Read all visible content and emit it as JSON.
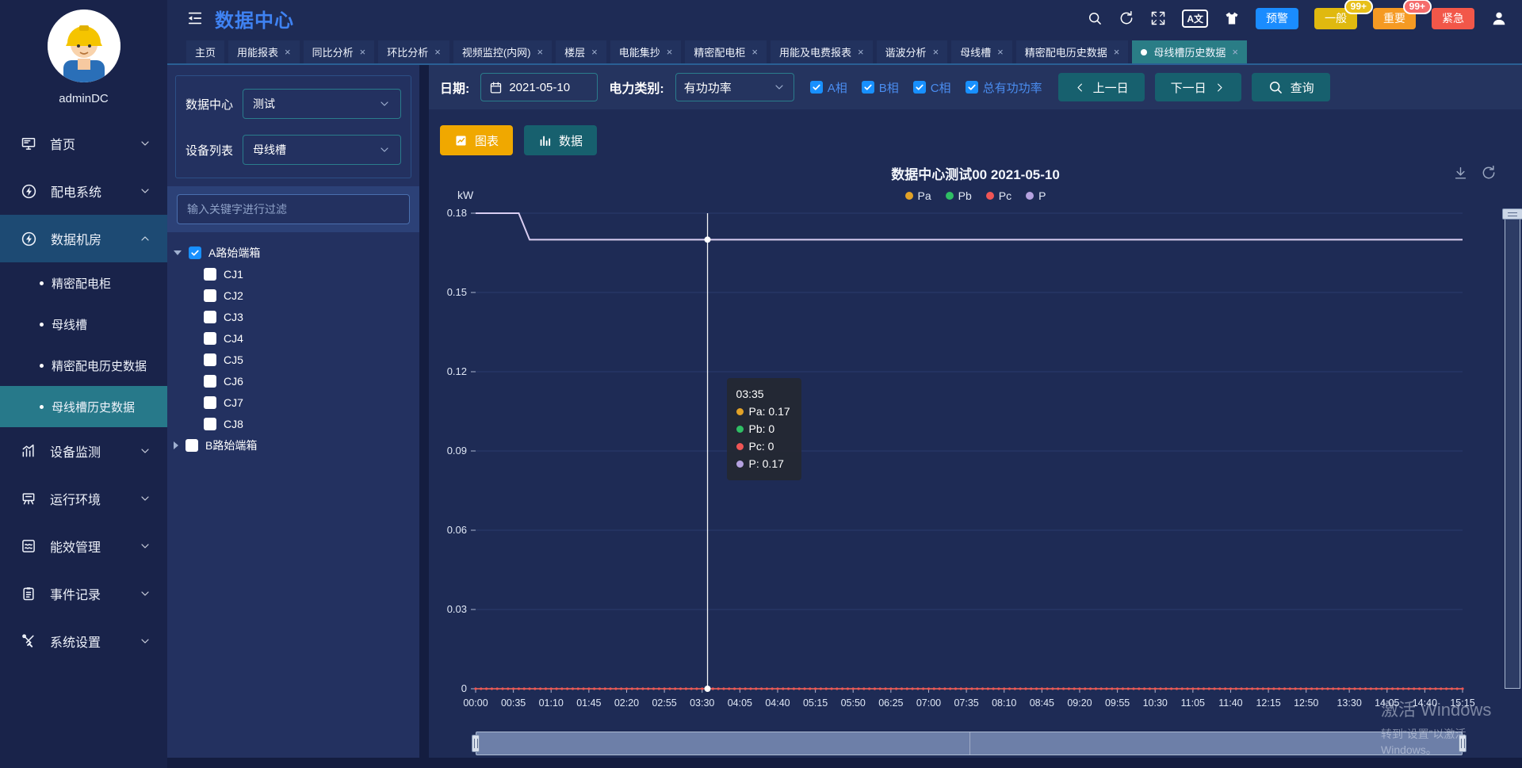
{
  "header": {
    "title": "数据中心",
    "action_icons": [
      "search",
      "refresh",
      "fullscreen",
      "translate",
      "theme"
    ],
    "translate_label": "A文",
    "badges": [
      {
        "id": "warning",
        "label": "预警",
        "color": "#1a8cff"
      },
      {
        "id": "general",
        "label": "一般",
        "color": "#e0b90f",
        "count": "99+",
        "count_color": "#e8c019"
      },
      {
        "id": "important",
        "label": "重要",
        "color": "#f59a23",
        "count": "99+",
        "count_color": "#f56c6c"
      },
      {
        "id": "urgent",
        "label": "紧急",
        "color": "#f25749"
      }
    ]
  },
  "tabs": [
    {
      "id": "home",
      "label": "主页",
      "closable": false,
      "active": false
    },
    {
      "id": "energy-report",
      "label": "用能报表",
      "closable": true,
      "active": false
    },
    {
      "id": "yoy-analysis",
      "label": "同比分析",
      "closable": true,
      "active": false
    },
    {
      "id": "mom-analysis",
      "label": "环比分析",
      "closable": true,
      "active": false
    },
    {
      "id": "video-monitor",
      "label": "视频监控(内网)",
      "closable": true,
      "active": false
    },
    {
      "id": "floor",
      "label": "楼层",
      "closable": true,
      "active": false
    },
    {
      "id": "meter-reading",
      "label": "电能集抄",
      "closable": true,
      "active": false
    },
    {
      "id": "precision-cabinet",
      "label": "精密配电柜",
      "closable": true,
      "active": false
    },
    {
      "id": "energy-fee-report",
      "label": "用能及电费报表",
      "closable": true,
      "active": false
    },
    {
      "id": "harmonic",
      "label": "谐波分析",
      "closable": true,
      "active": false
    },
    {
      "id": "busway",
      "label": "母线槽",
      "closable": true,
      "active": false
    },
    {
      "id": "precision-history",
      "label": "精密配电历史数据",
      "closable": true,
      "active": false
    },
    {
      "id": "busway-history",
      "label": "母线槽历史数据",
      "closable": true,
      "active": true
    }
  ],
  "sidebar": {
    "username": "adminDC",
    "menu": [
      {
        "id": "home",
        "label": "首页",
        "icon": "monitor",
        "expandable": true,
        "expanded": false
      },
      {
        "id": "power-distribution",
        "label": "配电系统",
        "icon": "bolt",
        "expandable": true,
        "expanded": false
      },
      {
        "id": "data-room",
        "label": "数据机房",
        "icon": "bolt",
        "expandable": true,
        "expanded": true,
        "children": [
          {
            "id": "precision-cabinet",
            "label": "精密配电柜",
            "active": false
          },
          {
            "id": "busway",
            "label": "母线槽",
            "active": false
          },
          {
            "id": "precision-history",
            "label": "精密配电历史数据",
            "active": false
          },
          {
            "id": "busway-history",
            "label": "母线槽历史数据",
            "active": true
          }
        ]
      },
      {
        "id": "device-monitor",
        "label": "设备监测",
        "icon": "bars",
        "expandable": true,
        "expanded": false
      },
      {
        "id": "environment",
        "label": "运行环境",
        "icon": "env",
        "expandable": true,
        "expanded": false
      },
      {
        "id": "energy-mgmt",
        "label": "能效管理",
        "icon": "wavedoc",
        "expandable": true,
        "expanded": false
      },
      {
        "id": "event-log",
        "label": "事件记录",
        "icon": "clipboard",
        "expandable": true,
        "expanded": false
      },
      {
        "id": "system-settings",
        "label": "系统设置",
        "icon": "tools",
        "expandable": true,
        "expanded": false
      }
    ]
  },
  "device_panel": {
    "datacenter_label": "数据中心",
    "datacenter_value": "测试",
    "device_label": "设备列表",
    "device_value": "母线槽",
    "filter_placeholder": "输入关键字进行过滤",
    "tree": [
      {
        "id": "a-head-box",
        "label": "A路始端箱",
        "checked": true,
        "expanded": true,
        "children": [
          "CJ1",
          "CJ2",
          "CJ3",
          "CJ4",
          "CJ5",
          "CJ6",
          "CJ7",
          "CJ8"
        ]
      },
      {
        "id": "b-head-box",
        "label": "B路始端箱",
        "checked": false,
        "expanded": false,
        "children": []
      }
    ]
  },
  "toolbar": {
    "date_label": "日期:",
    "date_value": "2021-05-10",
    "type_label": "电力类别:",
    "type_value": "有功功率",
    "phases": [
      {
        "label": "A相",
        "checked": true
      },
      {
        "label": "B相",
        "checked": true
      },
      {
        "label": "C相",
        "checked": true
      },
      {
        "label": "总有功功率",
        "checked": true
      }
    ],
    "prev_label": "上一日",
    "next_label": "下一日",
    "query_label": "查询",
    "chart_btn": "图表",
    "data_btn": "数据"
  },
  "chart_data": {
    "type": "line",
    "title": "数据中心测试00  2021-05-10",
    "unit": "kW",
    "ylim": [
      0,
      0.18
    ],
    "y_ticks": [
      "0",
      "0.03",
      "0.06",
      "0.09",
      "0.12",
      "0.15",
      "0.18"
    ],
    "x_ticks": [
      "00:00",
      "00:35",
      "01:10",
      "01:45",
      "02:20",
      "02:55",
      "03:30",
      "04:05",
      "04:40",
      "05:15",
      "05:50",
      "06:25",
      "07:00",
      "07:35",
      "08:10",
      "08:45",
      "09:20",
      "09:55",
      "10:30",
      "11:05",
      "11:40",
      "12:15",
      "12:50",
      "13:30",
      "14:05",
      "14:40",
      "15:15"
    ],
    "sample_interval_minutes": 5,
    "grid": true,
    "legend_position": "top-center",
    "series": [
      {
        "name": "Pa",
        "color": "#e2a227",
        "points": [
          [
            "00:00",
            0.18
          ],
          [
            "00:40",
            0.18
          ],
          [
            "00:50",
            0.17
          ],
          [
            "15:15",
            0.17
          ]
        ]
      },
      {
        "name": "Pb",
        "color": "#2fbe64",
        "points": [
          [
            "00:00",
            0
          ],
          [
            "15:15",
            0
          ]
        ]
      },
      {
        "name": "Pc",
        "color": "#f05555",
        "markers": true,
        "points": [
          [
            "00:00",
            0
          ],
          [
            "15:15",
            0
          ]
        ]
      },
      {
        "name": "P",
        "color": "#d8cdf2",
        "points": [
          [
            "00:00",
            0.18
          ],
          [
            "00:40",
            0.18
          ],
          [
            "00:50",
            0.17
          ],
          [
            "15:15",
            0.17
          ]
        ]
      }
    ],
    "legend": [
      {
        "name": "Pa",
        "color": "#e2a227"
      },
      {
        "name": "Pb",
        "color": "#2fbe64"
      },
      {
        "name": "Pc",
        "color": "#f05555"
      },
      {
        "name": "P",
        "color": "#b5a2e0"
      }
    ],
    "tooltip": {
      "time": "03:35",
      "rows": [
        {
          "name": "Pa",
          "value": "0.17",
          "color": "#e2a227"
        },
        {
          "name": "Pb",
          "value": "0",
          "color": "#2fbe64"
        },
        {
          "name": "Pc",
          "value": "0",
          "color": "#f05555"
        },
        {
          "name": "P",
          "value": "0.17",
          "color": "#b5a2e0"
        }
      ]
    }
  },
  "watermark": {
    "line1": "激活 Windows",
    "line2": "转到“设置”以激活 Windows。"
  }
}
